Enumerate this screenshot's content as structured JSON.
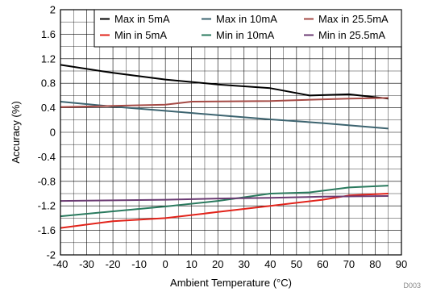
{
  "chart_data": {
    "type": "line",
    "xlabel": "Ambient Temperature (°C)",
    "ylabel": "Accuracy (%)",
    "xlim": [
      -40,
      90
    ],
    "ylim": [
      -2,
      2
    ],
    "x_ticks": [
      -40,
      -30,
      -20,
      -10,
      0,
      10,
      20,
      30,
      40,
      50,
      60,
      70,
      80,
      90
    ],
    "y_ticks": [
      -2,
      -1.6,
      -1.2,
      -0.8,
      -0.4,
      0,
      0.4,
      0.8,
      1.2,
      1.6,
      2
    ],
    "x_tick_labels": [
      "-40",
      "-30",
      "-20",
      "-10",
      "0",
      "10",
      "20",
      "30",
      "40",
      "50",
      "60",
      "70",
      "80",
      "90"
    ],
    "y_tick_labels": [
      "-2",
      "-1.6",
      "-1.2",
      "-0.8",
      "-0.4",
      "0",
      "0.4",
      "0.8",
      "1.2",
      "1.6",
      "2"
    ],
    "grid": true,
    "legend_position": "top-right",
    "footnote": "D003",
    "series": [
      {
        "name": "Max in 5mA",
        "color": "#000000",
        "x": [
          -40,
          -20,
          0,
          20,
          40,
          55,
          70,
          85
        ],
        "y": [
          1.1,
          0.97,
          0.86,
          0.78,
          0.72,
          0.6,
          0.62,
          0.55
        ]
      },
      {
        "name": "Max in 10mA",
        "color": "#3d6470",
        "x": [
          -40,
          -20,
          0,
          20,
          40,
          60,
          85
        ],
        "y": [
          0.5,
          0.42,
          0.35,
          0.28,
          0.21,
          0.15,
          0.06
        ]
      },
      {
        "name": "Max in 25.5mA",
        "color": "#a54a45",
        "x": [
          -40,
          -20,
          0,
          10,
          40,
          70,
          85
        ],
        "y": [
          0.41,
          0.43,
          0.45,
          0.5,
          0.51,
          0.55,
          0.56
        ]
      },
      {
        "name": "Min in 5mA",
        "color": "#e2231a",
        "x": [
          -40,
          -20,
          0,
          20,
          40,
          60,
          70,
          85
        ],
        "y": [
          -1.56,
          -1.45,
          -1.4,
          -1.3,
          -1.2,
          -1.1,
          -1.03,
          -1.0
        ]
      },
      {
        "name": "Min in 10mA",
        "color": "#2a7a5e",
        "x": [
          -40,
          -20,
          0,
          20,
          40,
          55,
          70,
          85
        ],
        "y": [
          -1.37,
          -1.29,
          -1.21,
          -1.12,
          -1.0,
          -0.98,
          -0.9,
          -0.87
        ]
      },
      {
        "name": "Min in 25.5mA",
        "color": "#6b3b73",
        "x": [
          -40,
          -20,
          0,
          20,
          40,
          60,
          85
        ],
        "y": [
          -1.12,
          -1.11,
          -1.1,
          -1.08,
          -1.07,
          -1.05,
          -1.04
        ]
      }
    ]
  }
}
